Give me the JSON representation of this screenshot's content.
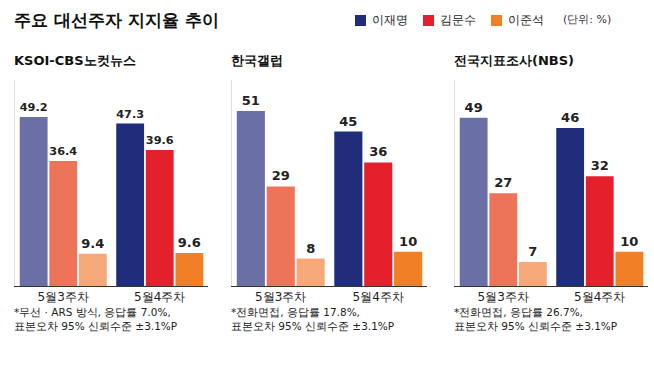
{
  "title": "주요 대선주자 지지율 추이",
  "subtitle": "(단위: %)",
  "chart_data": [
    {
      "type": "bar",
      "title": "KSOI-CBS노컷뉴스",
      "categories": [
        "5월3주차",
        "5월4주차"
      ],
      "series": [
        {
          "name": "이재명",
          "color": "#1f2d7a",
          "colors": [
            "#6a6fa6",
            "#1f2d7a"
          ],
          "values": [
            49.2,
            47.3
          ]
        },
        {
          "name": "김문수",
          "color": "#e3202b",
          "colors": [
            "#ee7459",
            "#e3202b"
          ],
          "values": [
            36.4,
            39.6
          ]
        },
        {
          "name": "이준석",
          "color": "#f07f26",
          "colors": [
            "#f6a878",
            "#f07f26"
          ],
          "values": [
            9.4,
            9.6
          ]
        }
      ],
      "ylim": [
        0,
        60
      ],
      "data_labels": true,
      "tick_labels": "x",
      "annotations": [
        "*무선 · ARS 방식, 응답률 7.0%,",
        "표본오차 95% 신뢰수준 ±3.1%P"
      ]
    },
    {
      "type": "bar",
      "title": "한국갤럽",
      "categories": [
        "5월3주차",
        "5월4주차"
      ],
      "series": [
        {
          "name": "이재명",
          "color": "#1f2d7a",
          "colors": [
            "#6a6fa6",
            "#1f2d7a"
          ],
          "values": [
            51,
            45
          ]
        },
        {
          "name": "김문수",
          "color": "#e3202b",
          "colors": [
            "#ee7459",
            "#e3202b"
          ],
          "values": [
            29,
            36
          ]
        },
        {
          "name": "이준석",
          "color": "#f07f26",
          "colors": [
            "#f6a878",
            "#f07f26"
          ],
          "values": [
            8,
            10
          ]
        }
      ],
      "ylim": [
        0,
        60
      ],
      "data_labels": true,
      "tick_labels": "x",
      "annotations": [
        "*전화면접, 응답률 17.8%,",
        "표본오차 95% 신뢰수준 ±3.1%P"
      ]
    },
    {
      "type": "bar",
      "title": "전국지표조사(NBS)",
      "categories": [
        "5월3주차",
        "5월4주차"
      ],
      "series": [
        {
          "name": "이재명",
          "color": "#1f2d7a",
          "colors": [
            "#6a6fa6",
            "#1f2d7a"
          ],
          "values": [
            49,
            46
          ]
        },
        {
          "name": "김문수",
          "color": "#e3202b",
          "colors": [
            "#ee7459",
            "#e3202b"
          ],
          "values": [
            27,
            32
          ]
        },
        {
          "name": "이준석",
          "color": "#f07f26",
          "colors": [
            "#f6a878",
            "#f07f26"
          ],
          "values": [
            7,
            10
          ]
        }
      ],
      "ylim": [
        0,
        60
      ],
      "data_labels": true,
      "tick_labels": "x",
      "annotations": [
        "*전화면접, 응답률 26.7%,",
        "표본오차 95% 신뢰수준 ±3.1%P"
      ]
    }
  ]
}
